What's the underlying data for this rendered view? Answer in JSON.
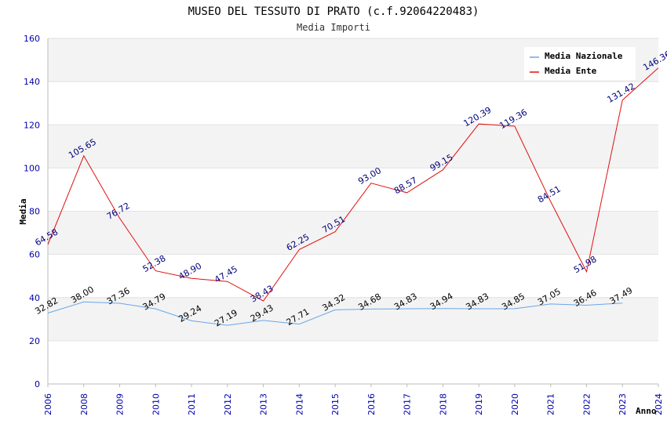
{
  "chart_data": {
    "type": "line",
    "title": "MUSEO DEL TESSUTO DI PRATO (c.f.92064220483)",
    "subtitle": "Media Importi",
    "xlabel": "Anno",
    "ylabel": "Media",
    "ylim": [
      0,
      160
    ],
    "yticks": [
      "0",
      "20",
      "40",
      "60",
      "80",
      "100",
      "120",
      "140",
      "160"
    ],
    "categories": [
      "2006",
      "2008",
      "2009",
      "2010",
      "2011",
      "2012",
      "2013",
      "2014",
      "2015",
      "2016",
      "2017",
      "2018",
      "2019",
      "2020",
      "2021",
      "2022",
      "2023",
      "2024"
    ],
    "legend_position": "top-right",
    "series": [
      {
        "name": "Media Nazionale",
        "color": "#6aa6e8",
        "label_color": "#000000",
        "values": [
          32.82,
          38.0,
          37.36,
          34.79,
          29.24,
          27.19,
          29.43,
          27.71,
          34.32,
          34.68,
          34.83,
          34.94,
          34.83,
          34.85,
          37.05,
          36.46,
          37.49,
          null
        ],
        "labels": [
          "32.82",
          "38.00",
          "37.36",
          "34.79",
          "29.24",
          "27.19",
          "29.43",
          "27.71",
          "34.32",
          "34.68",
          "34.83",
          "34.94",
          "34.83",
          "34.85",
          "37.05",
          "36.46",
          "37.49",
          ""
        ]
      },
      {
        "name": "Media Ente",
        "color": "#e01010",
        "label_color": "#00007a",
        "values": [
          64.58,
          105.65,
          76.72,
          52.38,
          48.9,
          47.45,
          38.43,
          62.25,
          70.51,
          93.0,
          88.57,
          99.15,
          120.39,
          119.36,
          84.51,
          51.98,
          131.42,
          146.36
        ],
        "labels": [
          "64.58",
          "105.65",
          "76.72",
          "52.38",
          "48.90",
          "47.45",
          "38.43",
          "62.25",
          "70.51",
          "93.00",
          "88.57",
          "99.15",
          "120.39",
          "119.36",
          "84.51",
          "51.98",
          "131.42",
          "146.36"
        ]
      }
    ]
  }
}
